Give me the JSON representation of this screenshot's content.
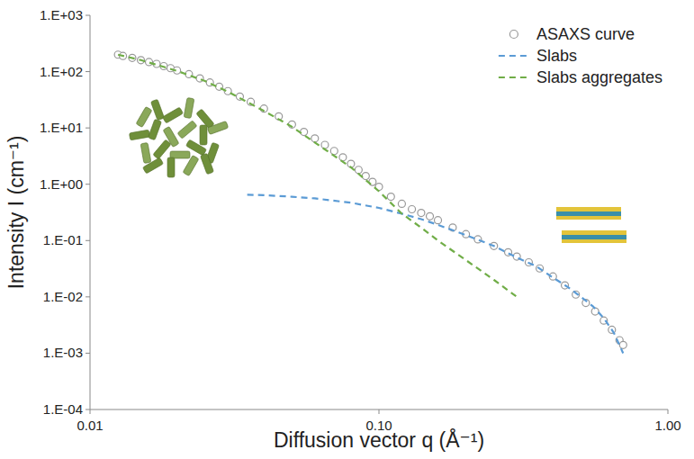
{
  "chart_data": {
    "type": "line",
    "x_label": "Diffusion vector q (Å⁻¹)",
    "y_label": "Intensity I (cm⁻¹)",
    "log": true,
    "grid": false,
    "legend": "upper right",
    "xlim": [
      0.01,
      1
    ],
    "ylim": [
      0.0001,
      1000
    ],
    "xticks": [
      {
        "value": 0.01,
        "label": "0.01"
      },
      {
        "value": 0.1,
        "label": "0.10"
      },
      {
        "value": 1,
        "label": "1.00"
      }
    ],
    "yticks": [
      {
        "value": 0.0001,
        "label": "1.E-04"
      },
      {
        "value": 0.001,
        "label": "1.E-03"
      },
      {
        "value": 0.01,
        "label": "1.E-02"
      },
      {
        "value": 0.1,
        "label": "1.E-01"
      },
      {
        "value": 1,
        "label": "1.E+00"
      },
      {
        "value": 10,
        "label": "1.E+01"
      },
      {
        "value": 100,
        "label": "1.E+02"
      },
      {
        "value": 1000,
        "label": "1.E+03"
      }
    ],
    "series": [
      {
        "name": "ASAXS curve",
        "type": "scatter",
        "marker": "circle",
        "color": "#999999",
        "x": [
          0.0125,
          0.013,
          0.014,
          0.015,
          0.016,
          0.017,
          0.018,
          0.019,
          0.02,
          0.022,
          0.024,
          0.026,
          0.028,
          0.03,
          0.033,
          0.036,
          0.04,
          0.045,
          0.05,
          0.055,
          0.06,
          0.065,
          0.07,
          0.075,
          0.08,
          0.085,
          0.09,
          0.095,
          0.1,
          0.11,
          0.12,
          0.13,
          0.14,
          0.15,
          0.16,
          0.18,
          0.2,
          0.22,
          0.25,
          0.28,
          0.3,
          0.33,
          0.36,
          0.4,
          0.44,
          0.48,
          0.52,
          0.56,
          0.6,
          0.64,
          0.68,
          0.7
        ],
        "values": [
          200,
          190,
          175,
          160,
          148,
          137,
          125,
          115,
          105,
          90,
          76,
          64,
          54,
          45,
          36,
          29,
          22,
          16,
          11.5,
          8.5,
          6.5,
          5,
          3.9,
          3.0,
          2.3,
          1.8,
          1.4,
          1.1,
          0.9,
          0.6,
          0.45,
          0.36,
          0.31,
          0.27,
          0.23,
          0.17,
          0.13,
          0.105,
          0.08,
          0.062,
          0.052,
          0.041,
          0.032,
          0.023,
          0.016,
          0.011,
          0.0078,
          0.0055,
          0.0038,
          0.0026,
          0.0017,
          0.0014
        ]
      },
      {
        "name": "Slabs",
        "type": "line",
        "line_style": "dashed",
        "color": "#5b9bd5",
        "x": [
          0.035,
          0.04,
          0.05,
          0.06,
          0.08,
          0.1,
          0.12,
          0.14,
          0.16,
          0.2,
          0.25,
          0.3,
          0.35,
          0.4,
          0.45,
          0.5,
          0.55,
          0.6,
          0.65,
          0.7
        ],
        "values": [
          0.65,
          0.64,
          0.6,
          0.56,
          0.47,
          0.38,
          0.3,
          0.24,
          0.19,
          0.125,
          0.08,
          0.05,
          0.035,
          0.022,
          0.015,
          0.01,
          0.0068,
          0.0042,
          0.0023,
          0.001
        ]
      },
      {
        "name": "Slabs aggregates",
        "type": "line",
        "line_style": "dashed",
        "color": "#70ad47",
        "x": [
          0.0125,
          0.015,
          0.02,
          0.025,
          0.03,
          0.04,
          0.05,
          0.06,
          0.07,
          0.08,
          0.1,
          0.12,
          0.14,
          0.16,
          0.2,
          0.25,
          0.3
        ],
        "values": [
          200,
          160,
          103,
          68,
          44,
          20,
          10.5,
          5.5,
          3.2,
          2.0,
          0.75,
          0.3,
          0.17,
          0.1,
          0.045,
          0.02,
          0.01
        ]
      }
    ]
  }
}
